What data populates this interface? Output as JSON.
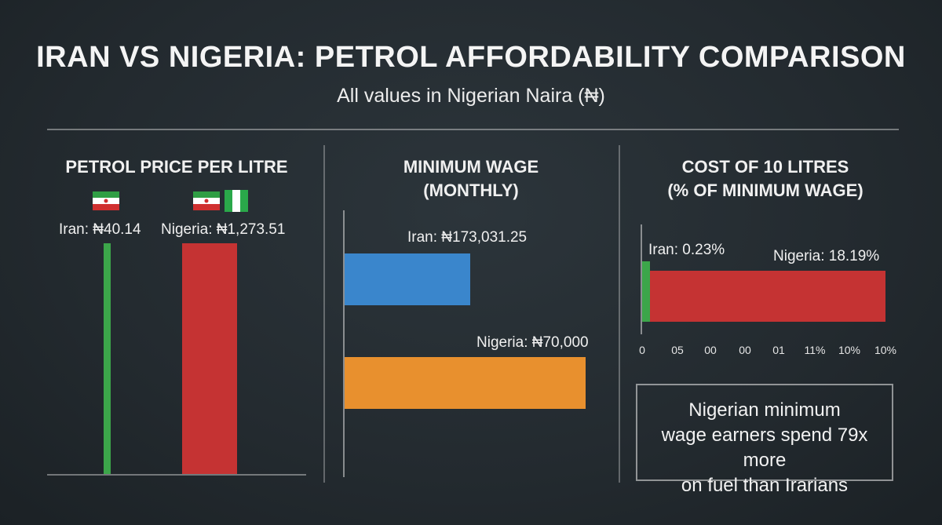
{
  "header": {
    "title": "IRAN VS NIGERIA: PETROL AFFORDABILITY COMPARISON",
    "subtitle": "All values in Nigerian Naira (₦)"
  },
  "colors": {
    "iran_petrol": "#3ca64a",
    "nigeria_petrol": "#c53333",
    "iran_wage": "#3a86cc",
    "nigeria_wage": "#e8902e",
    "iran_cost": "#3ca64a",
    "nigeria_cost": "#c53333"
  },
  "chart_data": [
    {
      "type": "bar",
      "orientation": "vertical",
      "title": "PETROL PRICE PER LITRE",
      "categories": [
        "Iran",
        "Nigeria"
      ],
      "values": [
        40.14,
        1273.51
      ],
      "labels": [
        "Iran: ₦40.14",
        "Nigeria: ₦1,273.51"
      ]
    },
    {
      "type": "bar",
      "orientation": "horizontal",
      "title_line1": "MINIMUM WAGE",
      "title_line2": "(MONTHLY)",
      "categories": [
        "Iran",
        "Nigeria"
      ],
      "values": [
        173031.25,
        70000
      ],
      "labels": [
        "Iran: ₦173,031.25",
        "Nigeria: ₦70,000"
      ]
    },
    {
      "type": "bar",
      "orientation": "horizontal-overlay",
      "title_line1": "COST OF 10 LITRES",
      "title_line2": "(% OF MINIMUM WAGE)",
      "categories": [
        "Iran",
        "Nigeria"
      ],
      "values": [
        0.23,
        18.19
      ],
      "labels": [
        "Iran: 0.23%",
        "Nigeria: 18.19%"
      ],
      "tick_labels": [
        "0",
        "05",
        "00",
        "00",
        "01",
        "11%",
        "10%",
        "10%"
      ]
    }
  ],
  "note": {
    "line1": "Nigerian minimum",
    "line2": "wage earners spend 79x more",
    "line3": "on fuel than Irarians"
  }
}
